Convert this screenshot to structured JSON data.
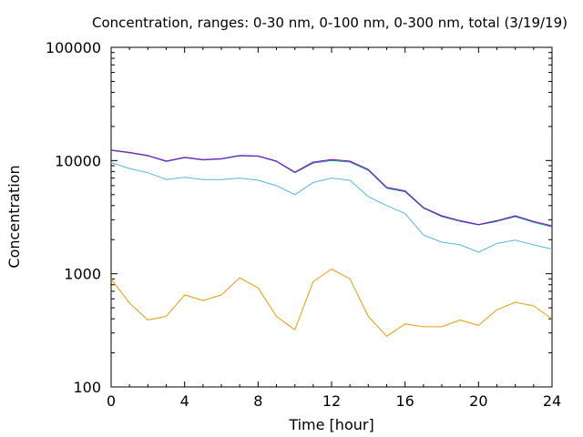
{
  "chart_data": {
    "type": "line",
    "title": "Concentration, ranges: 0-30 nm, 0-100 nm, 0-300 nm, total (3/19/19)",
    "xlabel": "Time [hour]",
    "ylabel": "Concentration",
    "xlim": [
      0,
      24
    ],
    "ylim": [
      100,
      100000
    ],
    "yscale": "log",
    "grid": false,
    "xticks": [
      "0",
      "4",
      "8",
      "12",
      "16",
      "20",
      "24"
    ],
    "xtick_values": [
      0,
      4,
      8,
      12,
      16,
      20,
      24
    ],
    "yticks": [
      "100",
      "1000",
      "10000",
      "100000"
    ],
    "ytick_values": [
      100,
      1000,
      10000,
      100000
    ],
    "x": [
      0,
      1,
      2,
      3,
      4,
      5,
      6,
      7,
      8,
      9,
      10,
      11,
      12,
      13,
      14,
      15,
      16,
      17,
      18,
      19,
      20,
      21,
      22,
      23,
      24
    ],
    "series": [
      {
        "color": "#e69f00",
        "values": [
          900,
          550,
          390,
          420,
          650,
          580,
          650,
          920,
          750,
          420,
          320,
          850,
          1100,
          900,
          420,
          280,
          360,
          340,
          340,
          390,
          350,
          480,
          560,
          520,
          400
        ]
      },
      {
        "color": "#56b4e9",
        "values": [
          9600,
          8500,
          7800,
          6800,
          7100,
          6800,
          6800,
          7000,
          6700,
          6000,
          5000,
          6400,
          7000,
          6700,
          4800,
          4000,
          3400,
          2200,
          1900,
          1800,
          1550,
          1850,
          1980,
          1800,
          1650
        ]
      },
      {
        "color": "#009e73",
        "values": [
          12300,
          11700,
          11000,
          9800,
          10600,
          10100,
          10300,
          11000,
          10900,
          9800,
          7800,
          9500,
          10000,
          9700,
          8200,
          5700,
          5300,
          3800,
          3200,
          2900,
          2700,
          2900,
          3200,
          2850,
          2600
        ]
      },
      {
        "color": "#9400d3",
        "values": [
          12400,
          11800,
          11100,
          9900,
          10700,
          10200,
          10400,
          11100,
          11000,
          9900,
          7900,
          9700,
          10200,
          9900,
          8350,
          5800,
          5400,
          3850,
          3250,
          2950,
          2720,
          2950,
          3250,
          2900,
          2650
        ]
      }
    ]
  }
}
